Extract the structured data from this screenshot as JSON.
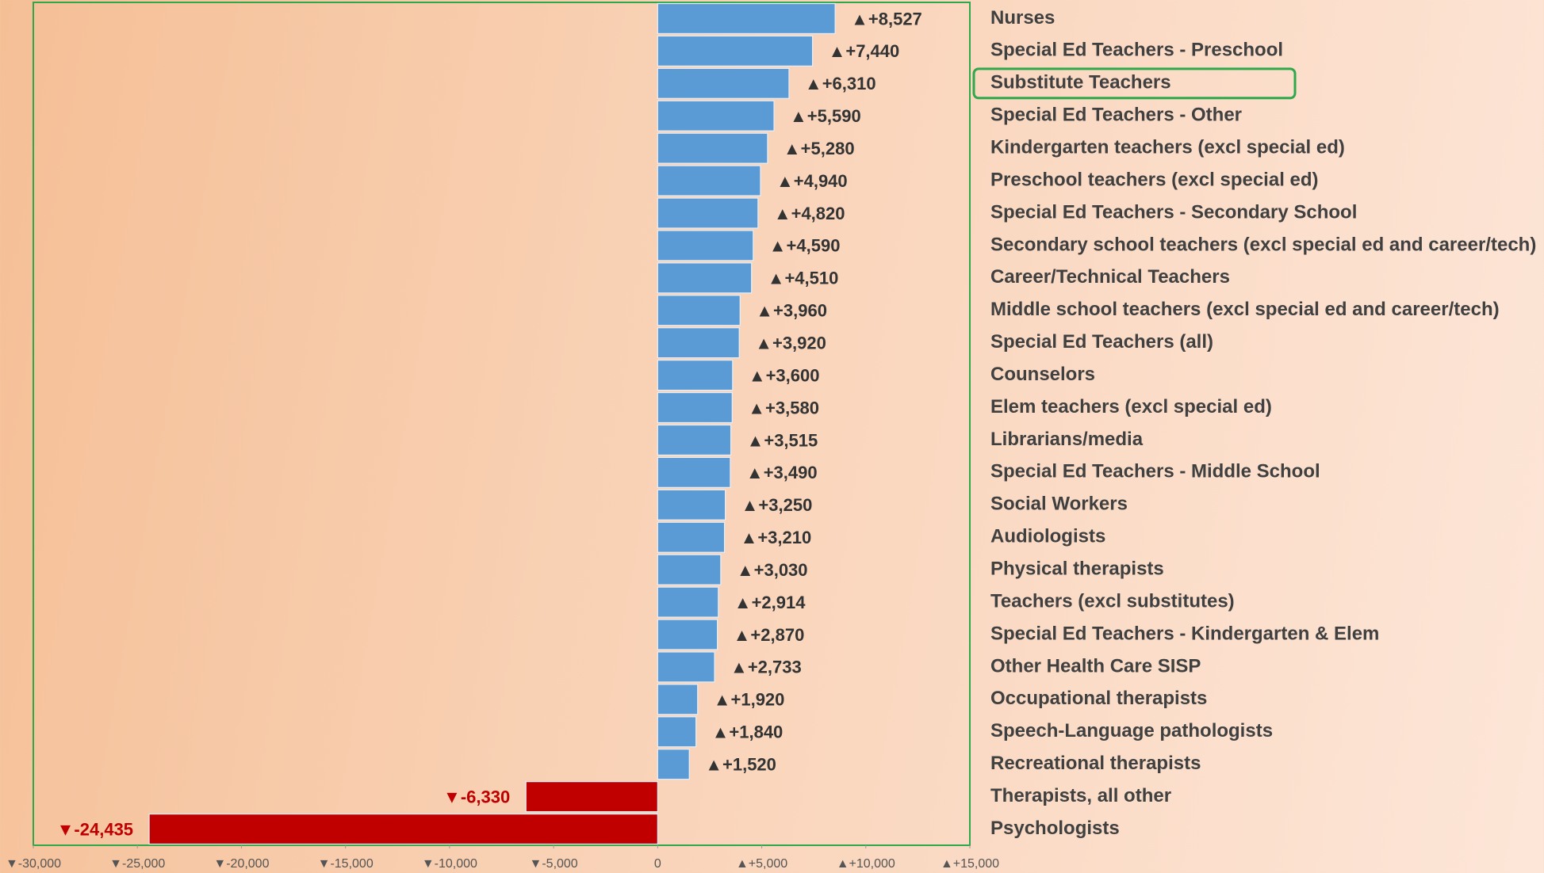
{
  "chart_data": {
    "type": "bar",
    "orientation": "horizontal",
    "categories": [
      "Nurses",
      "Special Ed Teachers - Preschool",
      "Substitute Teachers",
      "Special Ed Teachers - Other",
      "Kindergarten teachers (excl special ed)",
      "Preschool teachers (excl special ed)",
      "Special Ed Teachers - Secondary School",
      "Secondary school teachers (excl special ed and career/tech)",
      "Career/Technical Teachers",
      "Middle school teachers (excl special ed and career/tech)",
      "Special Ed Teachers (all)",
      "Counselors",
      "Elem teachers (excl special ed)",
      "Librarians/media",
      "Special Ed Teachers - Middle School",
      "Social Workers",
      "Audiologists",
      "Physical therapists",
      "Teachers (excl substitutes)",
      "Special Ed Teachers - Kindergarten & Elem",
      "Other Health Care SISP",
      "Occupational therapists",
      "Speech-Language pathologists",
      "Recreational therapists",
      "Therapists, all other",
      "Psychologists"
    ],
    "values": [
      8527,
      7440,
      6310,
      5590,
      5280,
      4940,
      4820,
      4590,
      4510,
      3960,
      3920,
      3600,
      3580,
      3515,
      3490,
      3250,
      3210,
      3030,
      2914,
      2870,
      2733,
      1920,
      1840,
      1520,
      -6330,
      -24435
    ],
    "value_labels": [
      "▲+8,527",
      "▲+7,440",
      "▲+6,310",
      "▲+5,590",
      "▲+5,280",
      "▲+4,940",
      "▲+4,820",
      "▲+4,590",
      "▲+4,510",
      "▲+3,960",
      "▲+3,920",
      "▲+3,600",
      "▲+3,580",
      "▲+3,515",
      "▲+3,490",
      "▲+3,250",
      "▲+3,210",
      "▲+3,030",
      "▲+2,914",
      "▲+2,870",
      "▲+2,733",
      "▲+1,920",
      "▲+1,840",
      "▲+1,520",
      "▼-6,330",
      "▼-24,435"
    ],
    "positive_color": "#5b9bd5",
    "negative_color": "#c00000",
    "xlim": [
      -30000,
      15000
    ],
    "xticks": [
      {
        "value": -30000,
        "label": "▼-30,000"
      },
      {
        "value": -25000,
        "label": "▼-25,000"
      },
      {
        "value": -20000,
        "label": "▼-20,000"
      },
      {
        "value": -15000,
        "label": "▼-15,000"
      },
      {
        "value": -10000,
        "label": "▼-10,000"
      },
      {
        "value": -5000,
        "label": "▼-5,000"
      },
      0,
      {
        "value": 5000,
        "label": "▲+5,000"
      },
      {
        "value": 10000,
        "label": "▲+10,000"
      },
      {
        "value": 15000,
        "label": "▲+15,000"
      }
    ],
    "grid": false
  }
}
